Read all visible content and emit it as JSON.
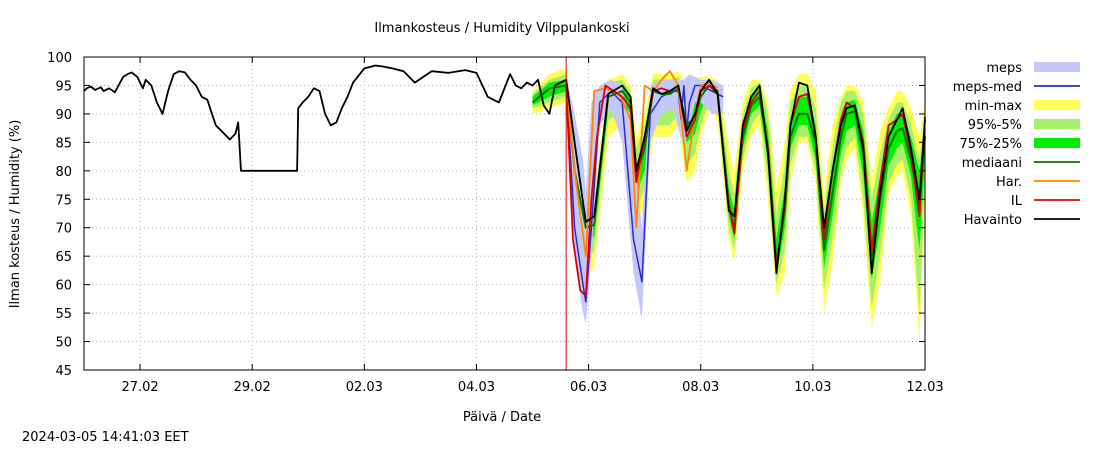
{
  "chart_data": {
    "type": "line",
    "title": "Ilmankosteus / Humidity  Vilppulankoski",
    "xlabel": "Päivä / Date",
    "ylabel": "Ilman kosteus / Humidity (%)",
    "ylim": [
      45,
      100
    ],
    "xlim_days": [
      0,
      15
    ],
    "y_ticks": [
      45,
      50,
      55,
      60,
      65,
      70,
      75,
      80,
      85,
      90,
      95,
      100
    ],
    "x_ticks": [
      {
        "label": "27.02",
        "day": 1
      },
      {
        "label": "29.02",
        "day": 3
      },
      {
        "label": "02.03",
        "day": 5
      },
      {
        "label": "04.03",
        "day": 7
      },
      {
        "label": "06.03",
        "day": 9
      },
      {
        "label": "08.03",
        "day": 11
      },
      {
        "label": "10.03",
        "day": 13
      },
      {
        "label": "12.03",
        "day": 15
      }
    ],
    "grid": true,
    "legend_position": "outside-right",
    "now_marker_day": 8.6,
    "colors": {
      "meps": "#c4c8f8",
      "meps_med": "#2b2bd6",
      "minmax": "#ffff55",
      "p95_5": "#a6f06a",
      "p75_25": "#00ee00",
      "median": "#007700",
      "har": "#ff8800",
      "il": "#dd0000",
      "havainto": "#000000",
      "now_marker": "#dd0000"
    },
    "legend": [
      {
        "label": "meps",
        "key": "meps",
        "kind": "band"
      },
      {
        "label": "meps-med",
        "key": "meps_med",
        "kind": "line"
      },
      {
        "label": "min-max",
        "key": "minmax",
        "kind": "band"
      },
      {
        "label": "95%-5%",
        "key": "p95_5",
        "kind": "band"
      },
      {
        "label": "75%-25%",
        "key": "p75_25",
        "kind": "band"
      },
      {
        "label": "mediaani",
        "key": "median",
        "kind": "line"
      },
      {
        "label": "Har.",
        "key": "har",
        "kind": "line"
      },
      {
        "label": "IL",
        "key": "il",
        "kind": "line"
      },
      {
        "label": "Havainto",
        "key": "havainto",
        "kind": "line"
      }
    ],
    "series": {
      "havainto_obs": {
        "name": "Havainto",
        "x": [
          0,
          0.05,
          0.12,
          0.2,
          0.3,
          0.35,
          0.45,
          0.55,
          0.7,
          0.78,
          0.85,
          0.95,
          1.05,
          1.1,
          1.2,
          1.3,
          1.4,
          1.5,
          1.6,
          1.7,
          1.8,
          1.9,
          2.0,
          2.1,
          2.2,
          2.35,
          2.5,
          2.6,
          2.7,
          2.75,
          2.8,
          2.85,
          2.9,
          2.95,
          3.0,
          3.05,
          3.1,
          3.5,
          3.8,
          3.82,
          3.9,
          4.0,
          4.1,
          4.2,
          4.3,
          4.35,
          4.4,
          4.5,
          4.6,
          4.7,
          4.8,
          5.0,
          5.2,
          5.35,
          5.5,
          5.7,
          5.9,
          6.2,
          6.5,
          6.8,
          7.0,
          7.2,
          7.4,
          7.6,
          7.7,
          7.8,
          7.9,
          8.0,
          8.1,
          8.2,
          8.3,
          8.4,
          8.5,
          8.6
        ],
        "y": [
          94,
          94.5,
          94.8,
          94.2,
          94.7,
          94.0,
          94.5,
          93.8,
          96.5,
          97.0,
          97.3,
          96.5,
          94.5,
          96.0,
          95.0,
          92.0,
          90.0,
          94.0,
          97.0,
          97.5,
          97.3,
          96.0,
          95.0,
          93.0,
          92.5,
          88.0,
          86.5,
          85.5,
          86.5,
          88.5,
          80.0,
          80.0,
          80.0,
          80.0,
          80.0,
          80.0,
          80.0,
          80.0,
          80.0,
          91.0,
          92.0,
          93.0,
          94.5,
          94.0,
          90.0,
          89.0,
          88.0,
          88.5,
          91.0,
          93.0,
          95.5,
          98.0,
          98.5,
          98.3,
          98.0,
          97.5,
          95.5,
          97.5,
          97.2,
          97.7,
          97.2,
          93.0,
          92.0,
          97.0,
          95.0,
          94.5,
          95.5,
          95.0,
          96.0,
          91.5,
          90.0,
          95.0,
          95.5,
          96.0
        ]
      },
      "havainto_fc": {
        "name": "Havainto",
        "x": [
          8.6,
          8.75,
          8.95,
          9.1,
          9.35,
          9.6,
          9.75,
          9.85,
          10.0,
          10.15,
          10.3,
          10.45,
          10.6,
          10.75,
          10.9,
          11.0,
          11.15,
          11.3,
          11.5,
          11.6,
          11.75,
          11.9,
          12.05,
          12.2,
          12.35,
          12.5,
          12.6,
          12.75,
          12.9,
          13.05,
          13.2,
          13.35,
          13.5,
          13.6,
          13.75,
          13.9,
          14.05,
          14.2,
          14.35,
          14.5,
          14.6,
          14.75,
          14.9,
          15.0
        ],
        "y": [
          96.0,
          85.0,
          71.0,
          72.0,
          93.5,
          95.0,
          93.0,
          80.0,
          86.0,
          94.5,
          93.5,
          94.0,
          95.0,
          87.0,
          90.0,
          94.0,
          96.0,
          93.5,
          73.0,
          72.0,
          88.0,
          93.0,
          95.0,
          83.0,
          62.0,
          75.0,
          88.0,
          95.5,
          95.0,
          86.0,
          70.0,
          80.0,
          88.0,
          91.0,
          91.5,
          84.0,
          62.0,
          76.0,
          86.0,
          89.0,
          91.0,
          84.0,
          75.0,
          89.0
        ]
      },
      "median": {
        "name": "mediaani",
        "x": [
          8.0,
          8.3,
          8.6,
          8.75,
          8.95,
          9.1,
          9.35,
          9.6,
          9.75,
          9.85,
          10.0,
          10.15,
          10.3,
          10.45,
          10.6,
          10.75,
          10.9,
          11.0,
          11.15,
          11.3,
          11.5,
          11.6,
          11.75,
          11.9,
          12.05,
          12.2,
          12.35,
          12.5,
          12.6,
          12.75,
          12.9,
          13.05,
          13.2,
          13.35,
          13.5,
          13.6,
          13.75,
          13.9,
          14.05,
          14.2,
          14.35,
          14.5,
          14.6,
          14.75,
          14.9,
          15.0
        ],
        "y": [
          92.0,
          94.5,
          95.0,
          80.0,
          70.0,
          70.5,
          93.0,
          94.0,
          92.0,
          79.0,
          84.0,
          94.0,
          93.5,
          93.5,
          94.5,
          88.0,
          89.5,
          93.0,
          95.0,
          94.0,
          74.0,
          70.0,
          86.0,
          91.5,
          93.0,
          84.0,
          64.0,
          73.0,
          86.0,
          90.0,
          90.0,
          85.0,
          66.0,
          76.0,
          86.0,
          90.0,
          90.5,
          83.0,
          65.0,
          75.0,
          84.0,
          87.0,
          87.5,
          82.0,
          74.0,
          86.0
        ]
      },
      "har": {
        "name": "Har.",
        "x": [
          8.6,
          8.75,
          8.95,
          9.1,
          9.3,
          9.55,
          9.75,
          9.85,
          10.0,
          10.15,
          10.3,
          10.45,
          10.6,
          10.75,
          10.9,
          11.0,
          11.15,
          11.3
        ],
        "y": [
          95.0,
          80.0,
          65.0,
          94.0,
          94.5,
          93.5,
          89.0,
          70.0,
          95.0,
          94.0,
          96.0,
          97.5,
          95.0,
          80.0,
          90.0,
          95.0,
          95.5,
          94.5
        ]
      },
      "il": {
        "name": "IL",
        "x": [
          8.6,
          8.72,
          8.85,
          8.95,
          9.05,
          9.15,
          9.3,
          9.45,
          9.6,
          9.75,
          9.85,
          10.0,
          10.15,
          10.3,
          10.45,
          10.6,
          10.75,
          10.9,
          11.0,
          11.15,
          11.3,
          11.5,
          11.6,
          11.75,
          11.9,
          12.05,
          12.2,
          12.35,
          12.5,
          12.6,
          12.75,
          12.9,
          13.05,
          13.2,
          13.35,
          13.5,
          13.6,
          13.75,
          13.9,
          14.05,
          14.2,
          14.35,
          14.5,
          14.6,
          14.75,
          14.9,
          15.0
        ],
        "y": [
          95.0,
          68.0,
          59.0,
          58.0,
          75.0,
          86.0,
          95.0,
          94.0,
          93.0,
          91.0,
          78.0,
          86.0,
          94.0,
          94.5,
          94.0,
          95.0,
          86.0,
          89.0,
          94.0,
          95.0,
          93.5,
          74.0,
          69.0,
          87.0,
          92.0,
          94.0,
          84.0,
          63.0,
          74.0,
          88.0,
          93.0,
          93.5,
          86.0,
          68.0,
          80.0,
          89.0,
          92.0,
          91.0,
          85.0,
          66.0,
          78.0,
          88.0,
          89.0,
          90.0,
          83.0,
          72.0,
          89.5
        ]
      },
      "meps_med": {
        "name": "meps-med",
        "x": [
          8.6,
          8.75,
          8.9,
          8.95,
          9.05,
          9.2,
          9.4,
          9.6,
          9.8,
          9.95,
          10.1,
          10.3,
          10.5,
          10.6,
          10.65,
          10.7,
          10.75,
          10.8,
          10.9,
          11.0,
          11.2,
          11.4
        ],
        "y": [
          95.0,
          70.0,
          60.0,
          57.0,
          70.0,
          92.0,
          94.0,
          92.0,
          68.0,
          60.5,
          90.0,
          93.0,
          94.0,
          94.0,
          89.0,
          95.0,
          87.0,
          92.0,
          95.0,
          95.0,
          94.0,
          93.0
        ]
      },
      "meps_band": {
        "name": "meps",
        "x": [
          8.6,
          8.75,
          8.9,
          8.95,
          9.05,
          9.2,
          9.4,
          9.6,
          9.8,
          9.95,
          10.1,
          10.3,
          10.5,
          10.7,
          10.8,
          10.9,
          11.0,
          11.2,
          11.4
        ],
        "lo": [
          91.0,
          65.0,
          55.0,
          53.0,
          65.0,
          88.0,
          91.0,
          85.0,
          62.0,
          54.0,
          85.0,
          90.0,
          91.0,
          84.0,
          88.0,
          92.0,
          92.0,
          90.0,
          90.0
        ],
        "hi": [
          96.5,
          90.0,
          82.0,
          76.0,
          92.0,
          95.0,
          96.0,
          95.0,
          84.0,
          70.0,
          95.0,
          96.0,
          96.0,
          96.0,
          97.0,
          96.5,
          96.0,
          96.0,
          95.0
        ]
      },
      "minmax_band": {
        "name": "min-max",
        "x": [
          8.0,
          8.3,
          8.6,
          8.75,
          8.95,
          9.1,
          9.35,
          9.6,
          9.75,
          9.85,
          10.0,
          10.15,
          10.3,
          10.45,
          10.6,
          10.75,
          10.9,
          11.0,
          11.15,
          11.3,
          11.5,
          11.6,
          11.75,
          11.9,
          12.05,
          12.2,
          12.35,
          12.5,
          12.6,
          12.75,
          12.9,
          13.05,
          13.2,
          13.35,
          13.5,
          13.6,
          13.75,
          13.9,
          14.05,
          14.2,
          14.35,
          14.5,
          14.6,
          14.75,
          14.9,
          15.0
        ],
        "lo": [
          90.0,
          91.0,
          92.0,
          72.0,
          61.0,
          63.0,
          86.0,
          88.0,
          84.0,
          70.0,
          74.0,
          86.0,
          86.0,
          86.0,
          88.0,
          78.0,
          80.0,
          86.0,
          91.0,
          89.0,
          68.0,
          64.0,
          80.0,
          86.0,
          88.0,
          75.0,
          58.0,
          62.0,
          78.0,
          85.0,
          85.0,
          78.0,
          55.0,
          64.0,
          78.0,
          82.0,
          84.0,
          72.0,
          52.0,
          61.0,
          76.0,
          79.0,
          80.0,
          72.0,
          50.0,
          76.0
        ],
        "hi": [
          94.0,
          97.0,
          98.0,
          88.0,
          75.0,
          76.0,
          96.0,
          97.0,
          95.0,
          86.0,
          90.0,
          97.0,
          97.0,
          97.0,
          97.5,
          95.0,
          96.0,
          96.5,
          96.5,
          96.0,
          84.0,
          80.0,
          92.0,
          96.0,
          96.0,
          92.0,
          77.0,
          85.0,
          94.0,
          97.0,
          97.0,
          94.0,
          76.0,
          88.0,
          93.0,
          95.0,
          95.0,
          92.0,
          78.0,
          87.0,
          91.0,
          94.0,
          94.0,
          91.0,
          86.0,
          92.0
        ]
      },
      "p95_5_band": {
        "name": "95%-5%",
        "x": [
          8.0,
          8.3,
          8.6,
          8.75,
          8.95,
          9.1,
          9.35,
          9.6,
          9.75,
          9.85,
          10.0,
          10.15,
          10.3,
          10.45,
          10.6,
          10.75,
          10.9,
          11.0,
          11.15,
          11.3,
          11.5,
          11.6,
          11.75,
          11.9,
          12.05,
          12.2,
          12.35,
          12.5,
          12.6,
          12.75,
          12.9,
          13.05,
          13.2,
          13.35,
          13.5,
          13.6,
          13.75,
          13.9,
          14.05,
          14.2,
          14.35,
          14.5,
          14.6,
          14.75,
          14.9,
          15.0
        ],
        "lo": [
          91.0,
          92.0,
          93.0,
          75.0,
          64.0,
          66.0,
          89.0,
          90.0,
          87.0,
          73.0,
          77.0,
          88.0,
          88.0,
          88.0,
          90.0,
          81.0,
          83.0,
          88.0,
          92.0,
          91.0,
          70.0,
          66.0,
          82.0,
          88.0,
          90.0,
          78.0,
          60.0,
          66.0,
          81.0,
          86.0,
          86.0,
          80.0,
          59.0,
          68.0,
          80.0,
          84.0,
          86.0,
          75.0,
          56.0,
          65.0,
          78.0,
          81.0,
          82.0,
          75.0,
          55.0,
          79.0
        ],
        "hi": [
          93.5,
          96.0,
          97.0,
          86.0,
          73.0,
          74.0,
          95.5,
          96.0,
          94.0,
          84.0,
          88.0,
          96.0,
          96.0,
          96.0,
          96.5,
          93.0,
          94.0,
          95.5,
          96.0,
          95.5,
          80.0,
          76.0,
          90.0,
          94.5,
          95.5,
          90.0,
          72.0,
          81.0,
          92.0,
          95.0,
          95.0,
          91.0,
          73.0,
          84.0,
          92.0,
          94.0,
          94.0,
          90.0,
          75.0,
          83.0,
          89.0,
          92.0,
          92.0,
          88.0,
          82.0,
          90.0
        ]
      },
      "p75_25_band": {
        "name": "75%-25%",
        "x": [
          8.0,
          8.3,
          8.6,
          8.75,
          8.95,
          9.1,
          9.35,
          9.6,
          9.75,
          9.85,
          10.0,
          10.15,
          10.3,
          10.45,
          10.6,
          10.75,
          10.9,
          11.0,
          11.15,
          11.3,
          11.5,
          11.6,
          11.75,
          11.9,
          12.05,
          12.2,
          12.35,
          12.5,
          12.6,
          12.75,
          12.9,
          13.05,
          13.2,
          13.35,
          13.5,
          13.6,
          13.75,
          13.9,
          14.05,
          14.2,
          14.35,
          14.5,
          14.6,
          14.75,
          14.9,
          15.0
        ],
        "lo": [
          91.5,
          93.0,
          94.0,
          78.0,
          68.0,
          68.5,
          91.0,
          92.0,
          90.0,
          76.0,
          80.0,
          91.0,
          91.0,
          91.0,
          92.5,
          85.0,
          86.5,
          90.5,
          93.5,
          92.5,
          72.0,
          68.0,
          84.0,
          90.0,
          91.5,
          81.0,
          62.0,
          70.0,
          84.0,
          88.0,
          88.0,
          82.0,
          63.0,
          72.0,
          83.0,
          87.0,
          88.0,
          79.0,
          61.0,
          70.0,
          81.0,
          84.0,
          85.0,
          79.0,
          66.0,
          82.0
        ],
        "hi": [
          93.0,
          95.5,
          96.0,
          83.0,
          72.0,
          72.5,
          94.5,
          95.0,
          93.0,
          81.0,
          86.0,
          95.0,
          95.0,
          95.0,
          95.5,
          91.0,
          92.0,
          94.5,
          95.5,
          95.0,
          77.0,
          73.0,
          88.0,
          93.0,
          94.5,
          87.0,
          68.0,
          77.0,
          89.0,
          93.0,
          93.0,
          88.0,
          70.0,
          80.0,
          89.0,
          92.0,
          92.5,
          87.0,
          71.0,
          79.0,
          87.0,
          90.0,
          90.0,
          86.0,
          80.0,
          88.0
        ]
      }
    },
    "footer_timestamp": "2024-03-05 14:41:03 EET"
  }
}
